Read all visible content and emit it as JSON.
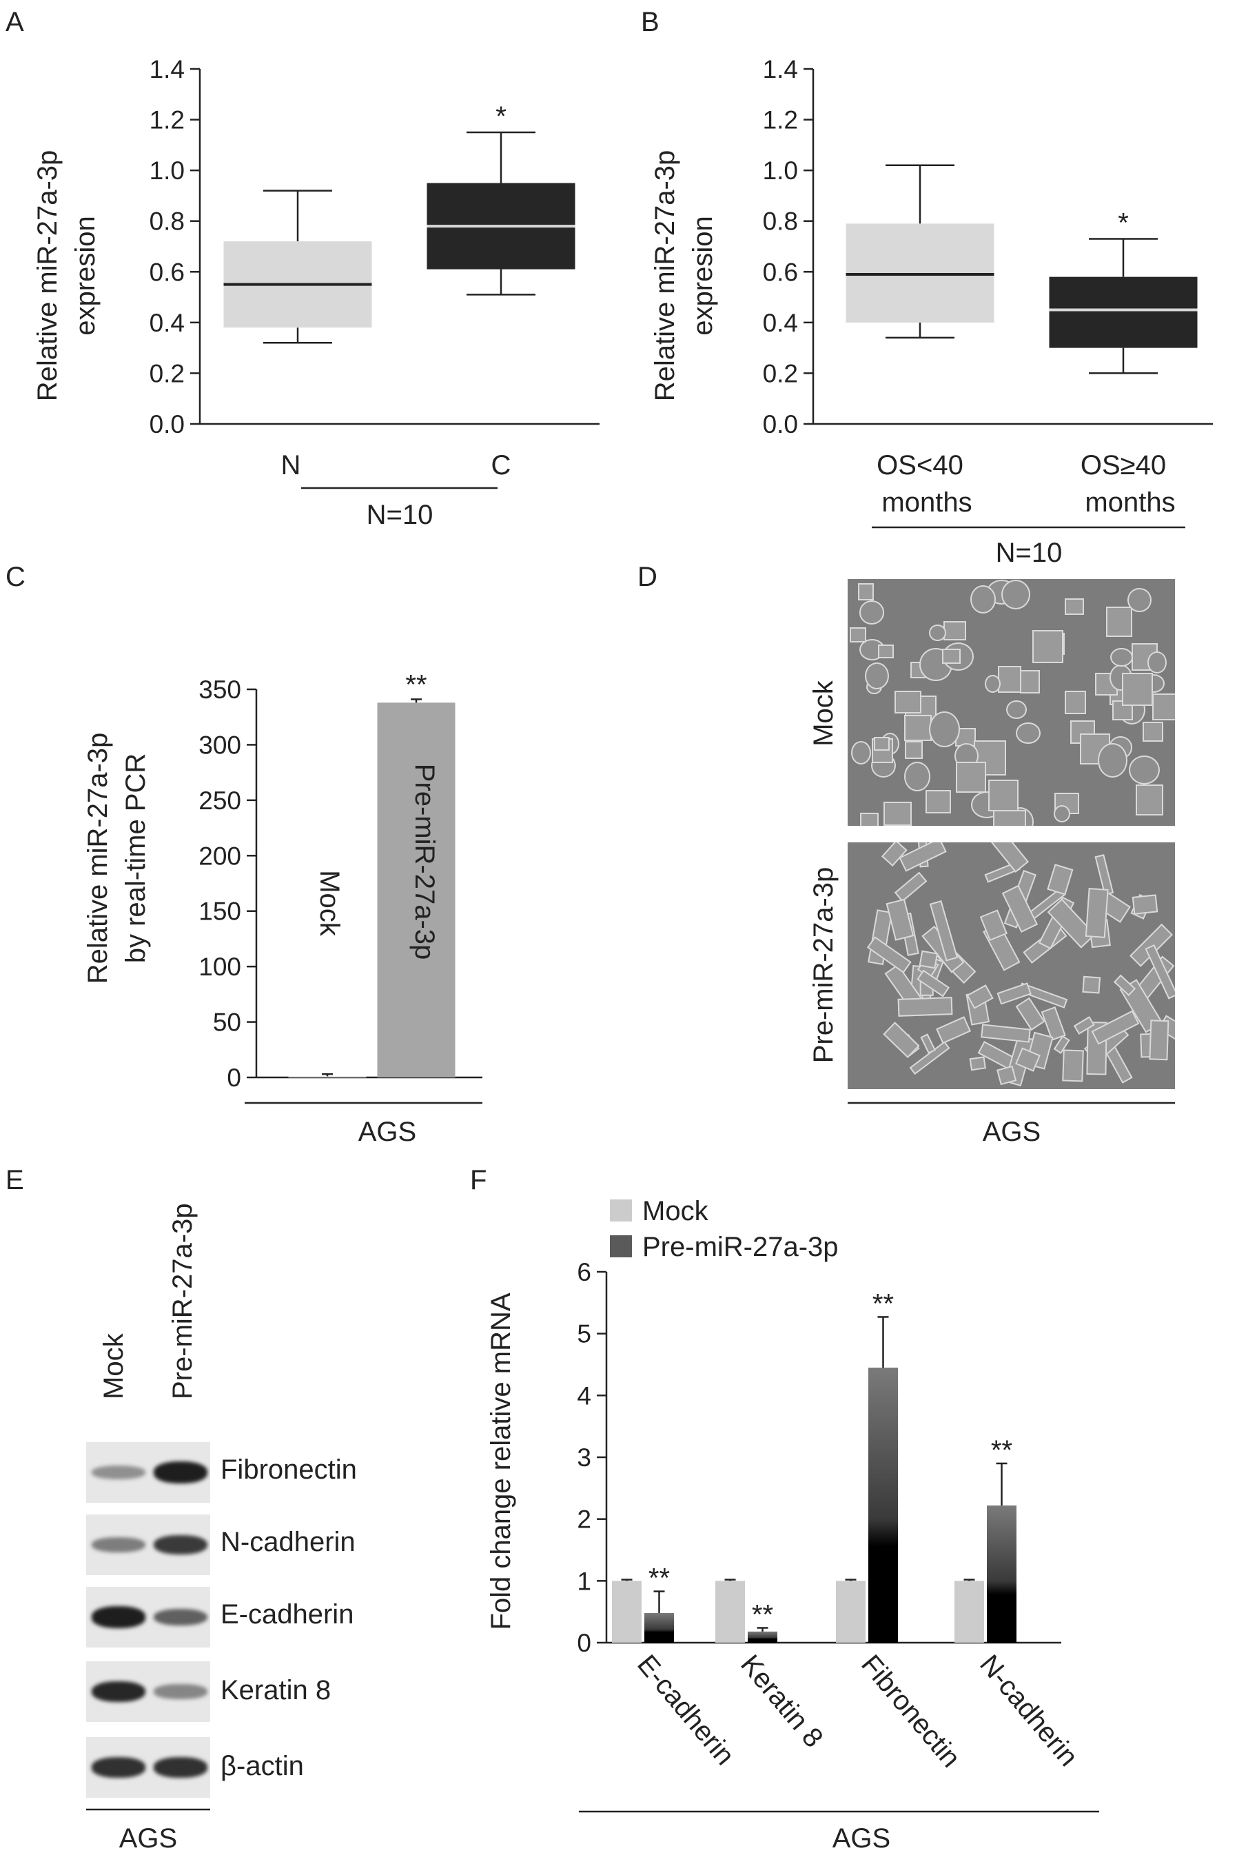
{
  "panels": {
    "A": {
      "letter": "A",
      "chart_data": {
        "type": "box",
        "ylabel": [
          "Relative miR-27a-3p",
          "expresion"
        ],
        "ylim": [
          0,
          1.4
        ],
        "yticks": [
          "0.0",
          "0.2",
          "0.4",
          "0.6",
          "0.8",
          "1.0",
          "1.2",
          "1.4"
        ],
        "categories": [
          "N",
          "C"
        ],
        "group_label": "N=10",
        "boxes": [
          {
            "category": "N",
            "min": 0.32,
            "q1": 0.38,
            "median": 0.55,
            "q3": 0.72,
            "max": 0.92,
            "color": "#d9d9d9",
            "median_color": "#222222",
            "annotation": ""
          },
          {
            "category": "C",
            "min": 0.51,
            "q1": 0.61,
            "median": 0.78,
            "q3": 0.95,
            "max": 1.15,
            "color": "#262626",
            "median_color": "#d9d9d9",
            "annotation": "*"
          }
        ]
      }
    },
    "B": {
      "letter": "B",
      "chart_data": {
        "type": "box",
        "ylabel": [
          "Relative miR-27a-3p",
          "expresion"
        ],
        "ylim": [
          0,
          1.4
        ],
        "yticks": [
          "0.0",
          "0.2",
          "0.4",
          "0.6",
          "0.8",
          "1.0",
          "1.2",
          "1.4"
        ],
        "categories": [
          [
            "OS<40",
            "months"
          ],
          [
            "OS≥40",
            "months"
          ]
        ],
        "group_label": "N=10",
        "boxes": [
          {
            "min": 0.34,
            "q1": 0.4,
            "median": 0.59,
            "q3": 0.79,
            "max": 1.02,
            "color": "#d9d9d9",
            "median_color": "#222222",
            "annotation": ""
          },
          {
            "min": 0.2,
            "q1": 0.3,
            "median": 0.45,
            "q3": 0.58,
            "max": 0.73,
            "color": "#262626",
            "median_color": "#d9d9d9",
            "annotation": "*"
          }
        ]
      }
    },
    "C": {
      "letter": "C",
      "chart_data": {
        "type": "bar",
        "ylabel": [
          "Relative miR-27a-3p",
          "by real-time PCR"
        ],
        "ylim": [
          0,
          350
        ],
        "yticks": [
          "0",
          "50",
          "100",
          "150",
          "200",
          "250",
          "300",
          "350"
        ],
        "categories": [
          "Mock",
          "Pre-miR-27a-3p"
        ],
        "values": [
          1,
          338
        ],
        "errors": [
          2,
          3
        ],
        "colors": [
          "#e0e0e0",
          "#a6a6a6"
        ],
        "annotations": [
          "",
          "**"
        ],
        "group_label": "AGS"
      }
    },
    "D": {
      "letter": "D",
      "rows": [
        "Mock",
        "Pre-miR-27a-3p"
      ],
      "group_label": "AGS"
    },
    "E": {
      "letter": "E",
      "lanes": [
        "Mock",
        "Pre-miR-27a-3p"
      ],
      "proteins": [
        "Fibronectin",
        "N-cadherin",
        "E-cadherin",
        "Keratin 8",
        "β-actin"
      ],
      "intensities": [
        [
          0.35,
          0.95
        ],
        [
          0.45,
          0.8
        ],
        [
          0.95,
          0.6
        ],
        [
          0.9,
          0.4
        ],
        [
          0.85,
          0.85
        ]
      ],
      "group_label": "AGS"
    },
    "F": {
      "letter": "F",
      "chart_data": {
        "type": "bar",
        "ylabel": "Fold change relative mRNA",
        "ylim": [
          0,
          6
        ],
        "yticks": [
          "0",
          "1",
          "2",
          "3",
          "4",
          "5",
          "6"
        ],
        "categories": [
          "E-cadherin",
          "Keratin 8",
          "Fibronectin",
          "N-cadherin"
        ],
        "series": [
          {
            "name": "Mock",
            "values": [
              1,
              1,
              1,
              1
            ],
            "errors": [
              0.02,
              0.02,
              0.02,
              0.02
            ],
            "color": "#cccccc"
          },
          {
            "name": "Pre-miR-27a-3p",
            "values": [
              0.48,
              0.18,
              4.45,
              2.22
            ],
            "errors": [
              0.35,
              0.06,
              0.82,
              0.68
            ],
            "color": "#5a5a5a"
          }
        ],
        "annotations": [
          "**",
          "**",
          "**",
          "**"
        ],
        "legend": "top-left",
        "group_label": "AGS"
      }
    }
  }
}
